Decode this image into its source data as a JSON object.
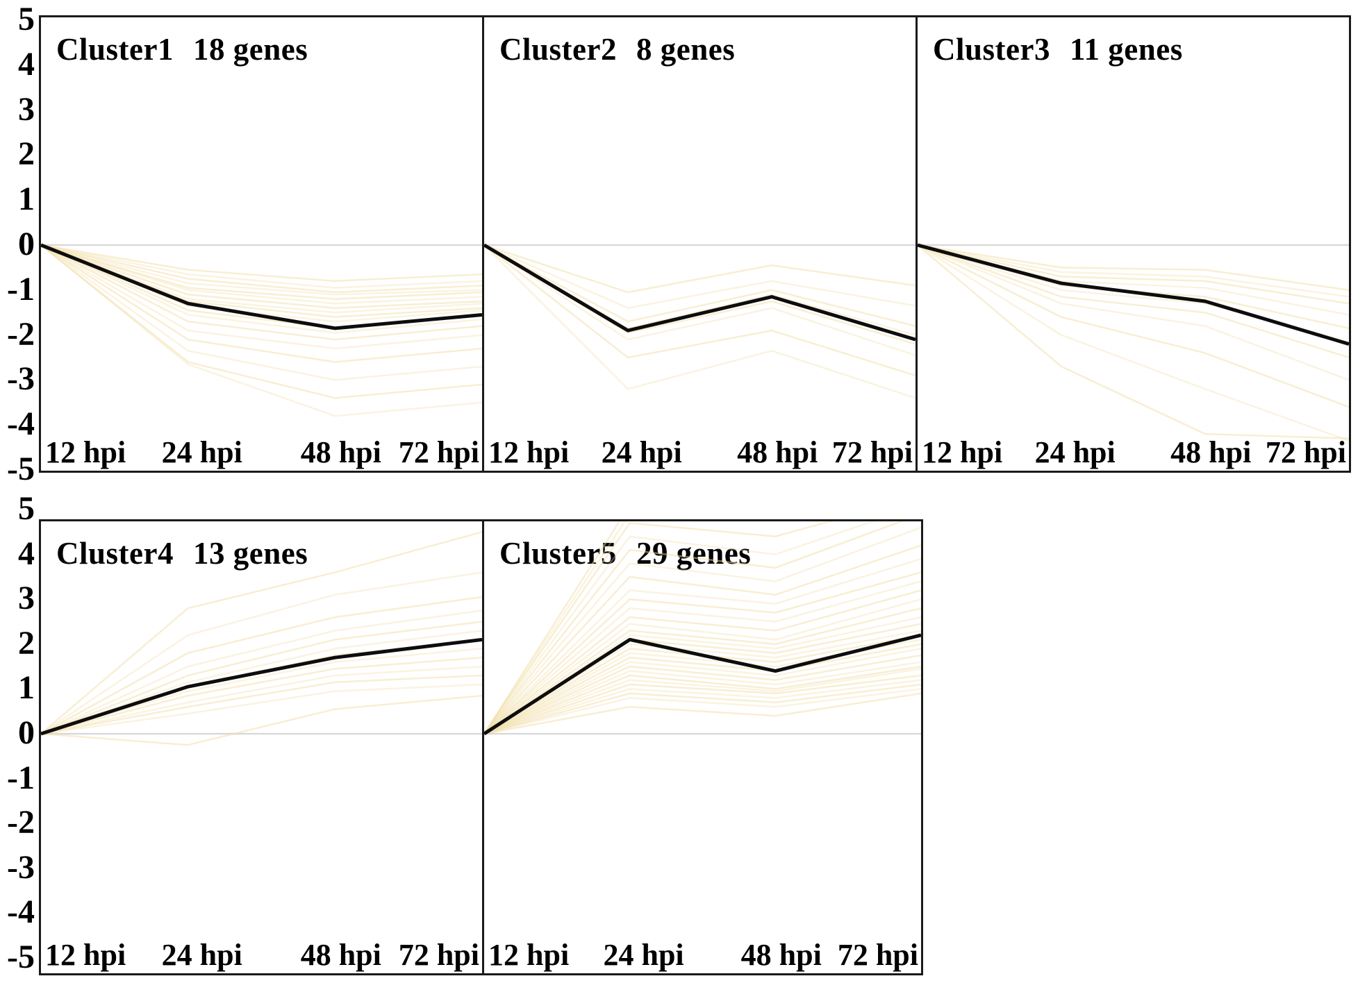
{
  "figure_title": "Gene expression clusters over time (hpi)",
  "colors": {
    "mean_line": "#0d0d0d",
    "gene_line": "#f2dda6",
    "grid_line": "#d9d9d9",
    "panel_border": "#1a1a1a",
    "background": "#ffffff",
    "text": "#000000"
  },
  "axis": {
    "y_ticks": [
      "5",
      "4",
      "3",
      "2",
      "1",
      "0",
      "-1",
      "-2",
      "-3",
      "-4",
      "-5"
    ],
    "y_tick_values": [
      5,
      4,
      3,
      2,
      1,
      0,
      -1,
      -2,
      -3,
      -4,
      -5
    ],
    "x_labels": [
      "12 hpi",
      "24 hpi",
      "48 hpi",
      "72 hpi"
    ],
    "ylim": [
      -5,
      5
    ],
    "grid": "zero-line-only",
    "legend": "none"
  },
  "chart_data": [
    {
      "type": "line",
      "name": "Cluster1",
      "genes": "18 genes",
      "x": [
        "12 hpi",
        "24 hpi",
        "48 hpi",
        "72 hpi"
      ],
      "ylim": [
        -5,
        5
      ],
      "mean_values": [
        0,
        -1.3,
        -1.85,
        -1.55
      ],
      "gene_lines": [
        [
          0,
          -0.55,
          -0.8,
          -0.65
        ],
        [
          0,
          -0.65,
          -0.95,
          -0.8
        ],
        [
          0,
          -0.75,
          -1.05,
          -0.9
        ],
        [
          0,
          -0.85,
          -1.1,
          -1.0
        ],
        [
          0,
          -0.95,
          -1.2,
          -1.05
        ],
        [
          0,
          -1.0,
          -1.3,
          -1.15
        ],
        [
          0,
          -1.1,
          -1.4,
          -1.25
        ],
        [
          0,
          -1.2,
          -1.5,
          -1.3
        ],
        [
          0,
          -1.25,
          -1.6,
          -1.4
        ],
        [
          0,
          -1.35,
          -1.7,
          -1.45
        ],
        [
          0,
          -1.45,
          -1.85,
          -1.55
        ],
        [
          0,
          -1.55,
          -1.95,
          -1.65
        ],
        [
          0,
          -1.7,
          -2.1,
          -1.8
        ],
        [
          0,
          -1.9,
          -2.3,
          -2.0
        ],
        [
          0,
          -2.1,
          -2.6,
          -2.3
        ],
        [
          0,
          -2.35,
          -3.0,
          -2.7
        ],
        [
          0,
          -2.6,
          -3.4,
          -3.1
        ],
        [
          0,
          -2.65,
          -3.8,
          -3.5
        ]
      ]
    },
    {
      "type": "line",
      "name": "Cluster2",
      "genes": "8 genes",
      "x": [
        "12 hpi",
        "24 hpi",
        "48 hpi",
        "72 hpi"
      ],
      "ylim": [
        -5,
        5
      ],
      "mean_values": [
        0,
        -1.9,
        -1.15,
        -2.1
      ],
      "gene_lines": [
        [
          0,
          -1.05,
          -0.45,
          -0.9
        ],
        [
          0,
          -1.4,
          -0.8,
          -1.35
        ],
        [
          0,
          -1.7,
          -1.0,
          -1.8
        ],
        [
          0,
          -1.85,
          -1.1,
          -2.0
        ],
        [
          0,
          -1.95,
          -1.25,
          -2.2
        ],
        [
          0,
          -2.1,
          -1.4,
          -2.45
        ],
        [
          0,
          -2.5,
          -1.9,
          -2.9
        ],
        [
          0,
          -3.2,
          -2.35,
          -3.4
        ]
      ]
    },
    {
      "type": "line",
      "name": "Cluster3",
      "genes": "11 genes",
      "x": [
        "12 hpi",
        "24 hpi",
        "48 hpi",
        "72 hpi"
      ],
      "ylim": [
        -5,
        5
      ],
      "mean_values": [
        0,
        -0.85,
        -1.25,
        -2.2
      ],
      "gene_lines": [
        [
          0,
          -0.5,
          -0.55,
          -1.0
        ],
        [
          0,
          -0.6,
          -0.7,
          -1.15
        ],
        [
          0,
          -0.7,
          -0.8,
          -1.3
        ],
        [
          0,
          -0.8,
          -0.95,
          -1.55
        ],
        [
          0,
          -0.9,
          -1.15,
          -1.85
        ],
        [
          0,
          -1.0,
          -1.3,
          -2.15
        ],
        [
          0,
          -1.15,
          -1.5,
          -2.5
        ],
        [
          0,
          -1.3,
          -1.8,
          -3.0
        ],
        [
          0,
          -1.6,
          -2.4,
          -3.6
        ],
        [
          0,
          -2.0,
          -3.2,
          -4.35
        ],
        [
          0,
          -2.7,
          -4.2,
          -4.3
        ]
      ]
    },
    {
      "type": "line",
      "name": "Cluster4",
      "genes": "13 genes",
      "x": [
        "12 hpi",
        "24 hpi",
        "48 hpi",
        "72 hpi"
      ],
      "ylim": [
        -5,
        5
      ],
      "mean_values": [
        0,
        1.05,
        1.7,
        2.1
      ],
      "gene_lines": [
        [
          0,
          -0.25,
          0.55,
          0.85
        ],
        [
          0,
          0.45,
          0.95,
          1.1
        ],
        [
          0,
          0.6,
          1.15,
          1.3
        ],
        [
          0,
          0.7,
          1.3,
          1.5
        ],
        [
          0,
          0.85,
          1.45,
          1.7
        ],
        [
          0,
          0.95,
          1.6,
          1.9
        ],
        [
          0,
          1.05,
          1.75,
          2.1
        ],
        [
          0,
          1.15,
          1.9,
          2.3
        ],
        [
          0,
          1.3,
          2.1,
          2.5
        ],
        [
          0,
          1.5,
          2.3,
          2.75
        ],
        [
          0,
          1.8,
          2.6,
          3.05
        ],
        [
          0,
          2.2,
          3.1,
          3.6
        ],
        [
          0,
          2.8,
          3.6,
          4.5
        ]
      ]
    },
    {
      "type": "line",
      "name": "Cluster5",
      "genes": "29 genes",
      "x": [
        "12 hpi",
        "24 hpi",
        "48 hpi",
        "72 hpi"
      ],
      "ylim": [
        -5,
        5
      ],
      "mean_values": [
        0,
        2.1,
        1.4,
        2.2
      ],
      "gene_lines": [
        [
          0,
          0.6,
          0.4,
          0.9
        ],
        [
          0,
          0.8,
          0.6,
          1.0
        ],
        [
          0,
          0.9,
          0.7,
          1.1
        ],
        [
          0,
          1.0,
          0.8,
          1.2
        ],
        [
          0,
          1.1,
          0.9,
          1.3
        ],
        [
          0,
          1.2,
          0.95,
          1.45
        ],
        [
          0,
          1.3,
          1.0,
          1.5
        ],
        [
          0,
          1.4,
          1.1,
          1.6
        ],
        [
          0,
          1.5,
          1.2,
          1.75
        ],
        [
          0,
          1.6,
          1.3,
          1.9
        ],
        [
          0,
          1.7,
          1.4,
          2.0
        ],
        [
          0,
          1.8,
          1.5,
          2.1
        ],
        [
          0,
          1.9,
          1.6,
          2.2
        ],
        [
          0,
          2.0,
          1.7,
          2.3
        ],
        [
          0,
          2.1,
          1.8,
          2.45
        ],
        [
          0,
          2.2,
          1.9,
          2.6
        ],
        [
          0,
          2.3,
          2.0,
          2.8
        ],
        [
          0,
          2.45,
          2.1,
          3.0
        ],
        [
          0,
          2.6,
          2.3,
          3.2
        ],
        [
          0,
          2.8,
          2.5,
          3.4
        ],
        [
          0,
          3.0,
          2.7,
          3.6
        ],
        [
          0,
          3.2,
          2.9,
          3.9
        ],
        [
          0,
          3.5,
          3.1,
          4.2
        ],
        [
          0,
          3.8,
          3.4,
          4.6
        ],
        [
          0,
          4.1,
          3.7,
          4.9
        ],
        [
          0,
          4.4,
          4.0,
          5.1
        ],
        [
          0,
          4.7,
          4.4,
          5.3
        ],
        [
          0,
          4.9,
          4.8,
          5.0
        ],
        [
          0,
          5.1,
          5.0,
          5.2
        ]
      ]
    }
  ]
}
